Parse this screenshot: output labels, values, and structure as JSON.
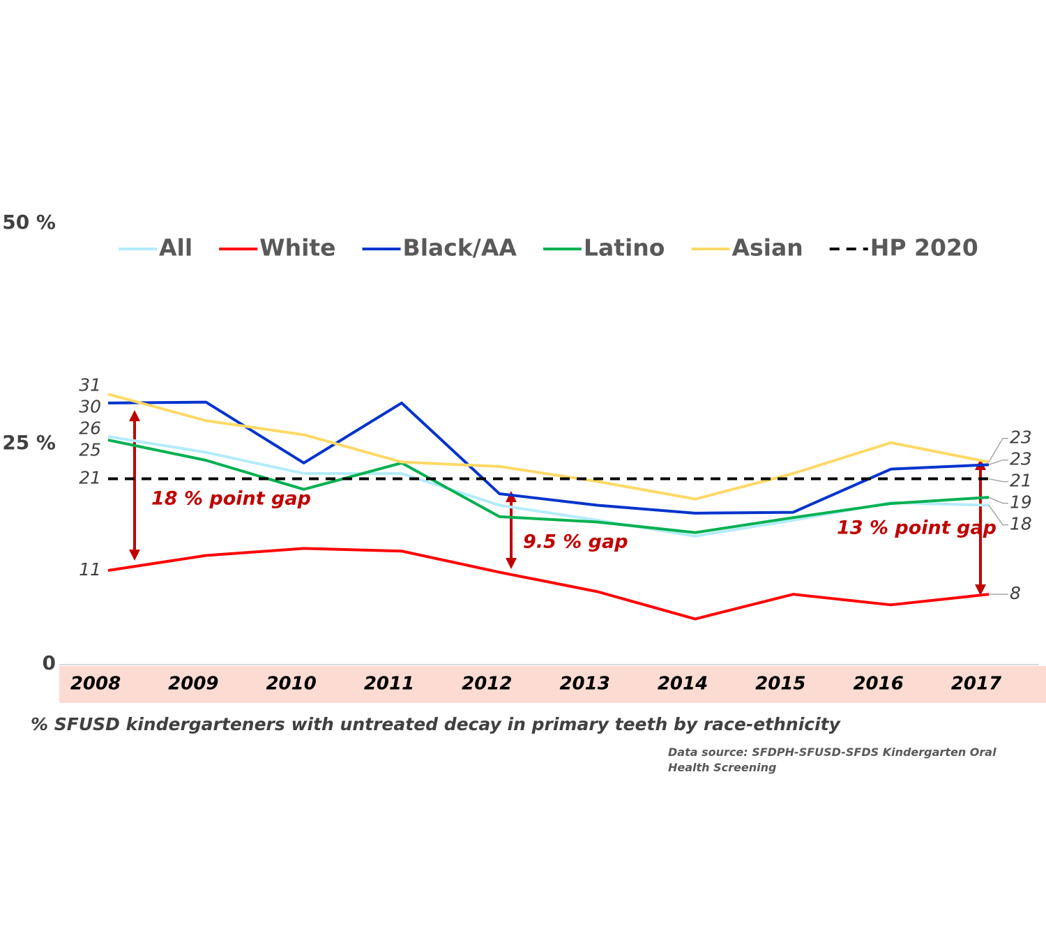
{
  "chart_data": {
    "type": "line",
    "categories": [
      "2008",
      "2009",
      "2010",
      "2011",
      "2012",
      "2013",
      "2014",
      "2015",
      "2016",
      "2017"
    ],
    "ylim": [
      0,
      50
    ],
    "yticks": [
      0,
      {
        "value": 25,
        "label": "25 %"
      },
      {
        "value": 50,
        "label": "50 %"
      }
    ],
    "grid": false,
    "legend": "top",
    "series": [
      {
        "name": "All",
        "color": "#b3ecfa",
        "values": [
          25.8,
          24.0,
          21.6,
          21.6,
          18.0,
          16.3,
          14.5,
          16.3,
          18.3,
          18.0
        ],
        "value_labels": [
          "26",
          null,
          null,
          null,
          null,
          null,
          null,
          null,
          null,
          "18"
        ]
      },
      {
        "name": "White",
        "color": "#ff0000",
        "values": [
          10.6,
          12.3,
          13.1,
          12.8,
          10.4,
          8.2,
          5.1,
          7.9,
          6.7,
          7.9
        ],
        "value_labels": [
          "11",
          null,
          null,
          null,
          null,
          null,
          null,
          null,
          null,
          "8"
        ]
      },
      {
        "name": "Black/AA",
        "color": "#0033cc",
        "values": [
          29.6,
          29.7,
          22.8,
          29.6,
          19.3,
          18.0,
          17.1,
          17.2,
          22.1,
          22.6
        ],
        "value_labels": [
          "30",
          null,
          null,
          null,
          null,
          null,
          null,
          null,
          null,
          "23"
        ]
      },
      {
        "name": "Latino",
        "color": "#00b050",
        "values": [
          25.4,
          23.1,
          19.8,
          22.8,
          16.7,
          16.1,
          14.9,
          16.6,
          18.2,
          18.9
        ],
        "value_labels": [
          "25",
          null,
          null,
          null,
          null,
          null,
          null,
          null,
          null,
          "19"
        ]
      },
      {
        "name": "Asian",
        "color": "#ffd966",
        "values": [
          30.6,
          27.6,
          26.0,
          22.9,
          22.4,
          20.7,
          18.7,
          21.6,
          25.1,
          22.9
        ],
        "value_labels": [
          "31",
          null,
          null,
          null,
          null,
          null,
          null,
          null,
          null,
          "23"
        ]
      },
      {
        "name": "HP 2020",
        "color": "#000000",
        "dash": true,
        "values": [
          21,
          21,
          21,
          21,
          21,
          21,
          21,
          21,
          21,
          21
        ],
        "value_labels": [
          "21",
          null,
          null,
          null,
          null,
          null,
          null,
          null,
          null,
          "21"
        ]
      }
    ],
    "annotations": [
      "18 % point gap",
      "9.5 % gap",
      "13 % point gap"
    ],
    "caption": "% SFUSD kindergarteners with untreated decay in primary teeth by race-ethnicity",
    "source": "Data source: SFDPH-SFUSD-SFDS Kindergarten Oral Health Screening"
  }
}
